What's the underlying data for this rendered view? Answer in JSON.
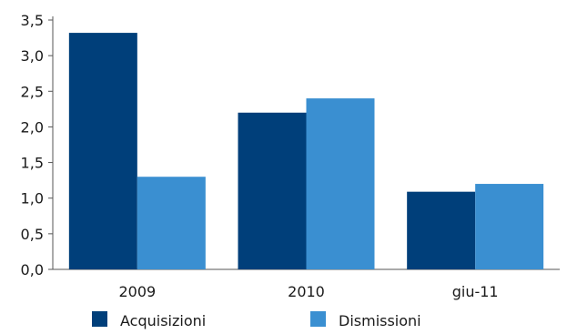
{
  "chart_data": {
    "type": "bar",
    "title": "",
    "xlabel": "",
    "ylabel": "",
    "categories": [
      "2009",
      "2010",
      "giu-11"
    ],
    "series": [
      {
        "name": "Acquisizioni",
        "color": "#003f7a",
        "values": [
          3.32,
          2.2,
          1.09
        ]
      },
      {
        "name": "Dismissioni",
        "color": "#3a8fd1",
        "values": [
          1.3,
          2.4,
          1.2
        ]
      }
    ],
    "ylim": [
      0,
      3.5
    ],
    "yticks": [
      "0,0",
      "0,5",
      "1,0",
      "1,5",
      "2,0",
      "2,5",
      "3,0",
      "3,5"
    ],
    "grid": false,
    "legend_position": "bottom"
  }
}
